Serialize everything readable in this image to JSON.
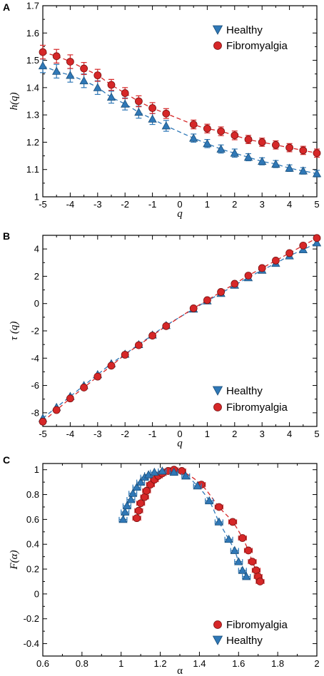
{
  "colors": {
    "healthy": "#2f78b7",
    "fibro": "#d62728",
    "healthy_dark": "#1b4f7a",
    "fibro_dark": "#7a1010"
  },
  "chart_data": [
    {
      "panel": "A",
      "type": "scatter",
      "xlabel": "q",
      "ylabel": "h(q)",
      "xlim": [
        -5,
        5
      ],
      "ylim": [
        1,
        1.7
      ],
      "xticks": [
        "-5",
        "-4",
        "-3",
        "-2",
        "-1",
        "0",
        "1",
        "2",
        "3",
        "4",
        "5"
      ],
      "yticks": [
        "1",
        "1.1",
        "1.2",
        "1.3",
        "1.4",
        "1.5",
        "1.6",
        "1.7"
      ],
      "legend_position": "top-right",
      "x": [
        -5,
        -4.5,
        -4,
        -3.5,
        -3,
        -2.5,
        -2,
        -1.5,
        -1,
        -0.5,
        0.5,
        1,
        1.5,
        2,
        2.5,
        3,
        3.5,
        4,
        4.5,
        5
      ],
      "series": [
        {
          "name": "Healthy",
          "marker": "triangle",
          "values": [
            1.48,
            1.46,
            1.445,
            1.425,
            1.4,
            1.365,
            1.34,
            1.31,
            1.285,
            1.26,
            1.215,
            1.195,
            1.175,
            1.16,
            1.145,
            1.13,
            1.12,
            1.105,
            1.095,
            1.085
          ],
          "errors": [
            0.025,
            0.025,
            0.025,
            0.025,
            0.025,
            0.022,
            0.022,
            0.022,
            0.02,
            0.02,
            0.015,
            0.015,
            0.015,
            0.015,
            0.013,
            0.013,
            0.013,
            0.012,
            0.012,
            0.012
          ]
        },
        {
          "name": "Fibromyalgia",
          "marker": "circle",
          "values": [
            1.53,
            1.515,
            1.495,
            1.47,
            1.445,
            1.41,
            1.38,
            1.35,
            1.325,
            1.305,
            1.265,
            1.25,
            1.24,
            1.225,
            1.21,
            1.2,
            1.19,
            1.18,
            1.17,
            1.16
          ],
          "errors": [
            0.025,
            0.025,
            0.025,
            0.022,
            0.022,
            0.02,
            0.02,
            0.02,
            0.02,
            0.018,
            0.016,
            0.016,
            0.016,
            0.016,
            0.015,
            0.015,
            0.015,
            0.015,
            0.015,
            0.015
          ]
        }
      ]
    },
    {
      "panel": "B",
      "type": "scatter",
      "xlabel": "q",
      "ylabel": "τ (q)",
      "xlim": [
        -5,
        5
      ],
      "ylim": [
        -9,
        5
      ],
      "xticks": [
        "-5",
        "-4",
        "-3",
        "-2",
        "-1",
        "0",
        "1",
        "2",
        "3",
        "4",
        "5"
      ],
      "yticks": [
        "-8",
        "-6",
        "-4",
        "-2",
        "0",
        "2",
        "4"
      ],
      "legend_position": "bottom-right",
      "x": [
        -5,
        -4.5,
        -4,
        -3.5,
        -3,
        -2.5,
        -2,
        -1.5,
        -1,
        -0.5,
        0.5,
        1,
        1.5,
        2,
        2.5,
        3,
        3.5,
        4,
        4.5,
        5
      ],
      "series": [
        {
          "name": "Healthy",
          "marker": "triangle",
          "values": [
            -8.4,
            -7.6,
            -6.8,
            -6,
            -5.2,
            -4.4,
            -3.7,
            -3,
            -2.3,
            -1.6,
            -0.4,
            0.2,
            0.75,
            1.35,
            1.9,
            2.45,
            2.95,
            3.5,
            3.95,
            4.45
          ],
          "errors": []
        },
        {
          "name": "Fibromyalgia",
          "marker": "circle",
          "values": [
            -8.65,
            -7.8,
            -6.95,
            -6.15,
            -5.35,
            -4.55,
            -3.75,
            -3.05,
            -2.35,
            -1.65,
            -0.35,
            0.25,
            0.85,
            1.45,
            2.05,
            2.6,
            3.15,
            3.7,
            4.25,
            4.8
          ],
          "errors": []
        }
      ]
    },
    {
      "panel": "C",
      "type": "scatter",
      "xlabel": "α",
      "ylabel": "F(α)",
      "xlim": [
        0.6,
        2
      ],
      "ylim": [
        -0.5,
        1.05
      ],
      "xticks": [
        "0.6",
        "0.8",
        "1",
        "1.2",
        "1.4",
        "1.6",
        "1.8",
        "2"
      ],
      "yticks": [
        "-0.4",
        "-0.2",
        "0",
        "0.2",
        "0.4",
        "0.6",
        "0.8",
        "1"
      ],
      "legend_position": "bottom-right",
      "series": [
        {
          "name": "Fibromyalgia",
          "marker": "circle",
          "x": [
            1.08,
            1.09,
            1.1,
            1.12,
            1.13,
            1.15,
            1.17,
            1.19,
            1.21,
            1.24,
            1.27,
            1.31,
            1.41,
            1.5,
            1.57,
            1.62,
            1.65,
            1.67,
            1.69,
            1.7,
            1.71
          ],
          "y": [
            0.61,
            0.67,
            0.73,
            0.78,
            0.83,
            0.88,
            0.92,
            0.95,
            0.97,
            0.99,
            1.0,
            0.99,
            0.88,
            0.7,
            0.58,
            0.45,
            0.35,
            0.26,
            0.19,
            0.14,
            0.1
          ],
          "xerr": [
            0.02,
            0.02,
            0.02,
            0.02,
            0.02,
            0.02,
            0.02,
            0.02,
            0.02,
            0.02,
            0.02,
            0.02,
            0.02,
            0.02,
            0.02,
            0.02,
            0.02,
            0.02,
            0.02,
            0.02,
            0.02
          ]
        },
        {
          "name": "Healthy",
          "marker": "triangle",
          "x": [
            1.01,
            1.02,
            1.03,
            1.05,
            1.06,
            1.08,
            1.1,
            1.12,
            1.14,
            1.17,
            1.21,
            1.27,
            1.33,
            1.39,
            1.45,
            1.5,
            1.55,
            1.58,
            1.6,
            1.62,
            1.64
          ],
          "y": [
            0.6,
            0.66,
            0.71,
            0.76,
            0.81,
            0.86,
            0.9,
            0.94,
            0.96,
            0.98,
            0.99,
            0.98,
            0.95,
            0.87,
            0.75,
            0.58,
            0.44,
            0.35,
            0.26,
            0.19,
            0.14
          ],
          "xerr": [
            0.02,
            0.02,
            0.02,
            0.02,
            0.02,
            0.02,
            0.02,
            0.02,
            0.02,
            0.02,
            0.02,
            0.02,
            0.02,
            0.02,
            0.02,
            0.02,
            0.02,
            0.02,
            0.02,
            0.02,
            0.02
          ]
        }
      ]
    }
  ]
}
